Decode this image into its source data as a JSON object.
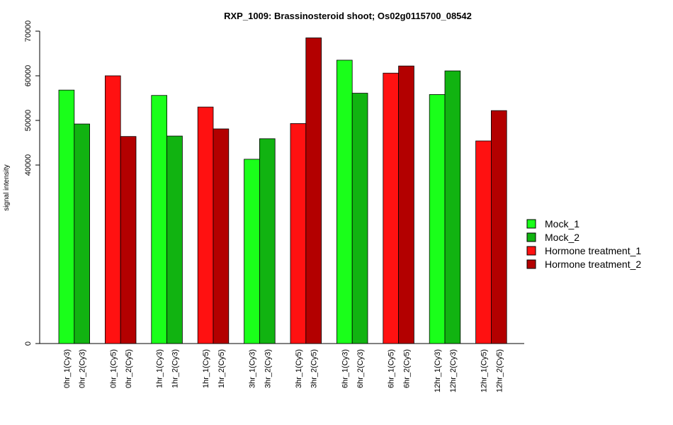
{
  "chart_data": {
    "type": "bar",
    "title": "RXP_1009: Brassinosteroid shoot; Os02g0115700_08542",
    "ylabel": "signal intensity",
    "xlabel": "",
    "yticks": [
      "0",
      "40000",
      "50000",
      "60000",
      "70000"
    ],
    "ytick_values": [
      0,
      40000,
      50000,
      60000,
      70000
    ],
    "y_axis_note": "non-linear (log-like) scale; 0 at baseline",
    "legend": {
      "placement": "right",
      "entries": [
        {
          "name": "Mock_1",
          "color": "#1aff1a"
        },
        {
          "name": "Mock_2",
          "color": "#11b311"
        },
        {
          "name": "Hormone treatment_1",
          "color": "#ff1111"
        },
        {
          "name": "Hormone treatment_2",
          "color": "#b30000"
        }
      ]
    },
    "bars": [
      {
        "label": "0hr_1(Cy3)",
        "value": 56800,
        "series": 0
      },
      {
        "label": "0hr_2(Cy3)",
        "value": 49200,
        "series": 1
      },
      {
        "label": "0hr_1(Cy5)",
        "value": 60000,
        "series": 2
      },
      {
        "label": "0hr_2(Cy5)",
        "value": 46400,
        "series": 3
      },
      {
        "label": "1hr_1(Cy3)",
        "value": 55600,
        "series": 0
      },
      {
        "label": "1hr_2(Cy3)",
        "value": 46500,
        "series": 1
      },
      {
        "label": "1hr_1(Cy5)",
        "value": 53000,
        "series": 2
      },
      {
        "label": "1hr_2(Cy5)",
        "value": 48100,
        "series": 3
      },
      {
        "label": "3hr_1(Cy3)",
        "value": 41300,
        "series": 0
      },
      {
        "label": "3hr_2(Cy3)",
        "value": 45900,
        "series": 1
      },
      {
        "label": "3hr_1(Cy5)",
        "value": 49300,
        "series": 2
      },
      {
        "label": "3hr_2(Cy5)",
        "value": 68500,
        "series": 3
      },
      {
        "label": "6hr_1(Cy3)",
        "value": 63500,
        "series": 0
      },
      {
        "label": "6hr_2(Cy3)",
        "value": 56100,
        "series": 1
      },
      {
        "label": "6hr_1(Cy5)",
        "value": 60600,
        "series": 2
      },
      {
        "label": "6hr_2(Cy5)",
        "value": 62200,
        "series": 3
      },
      {
        "label": "12hr_1(Cy3)",
        "value": 55800,
        "series": 0
      },
      {
        "label": "12hr_2(Cy3)",
        "value": 61100,
        "series": 1
      },
      {
        "label": "12hr_1(Cy5)",
        "value": 45400,
        "series": 2
      },
      {
        "label": "12hr_2(Cy5)",
        "value": 52200,
        "series": 3
      }
    ]
  }
}
